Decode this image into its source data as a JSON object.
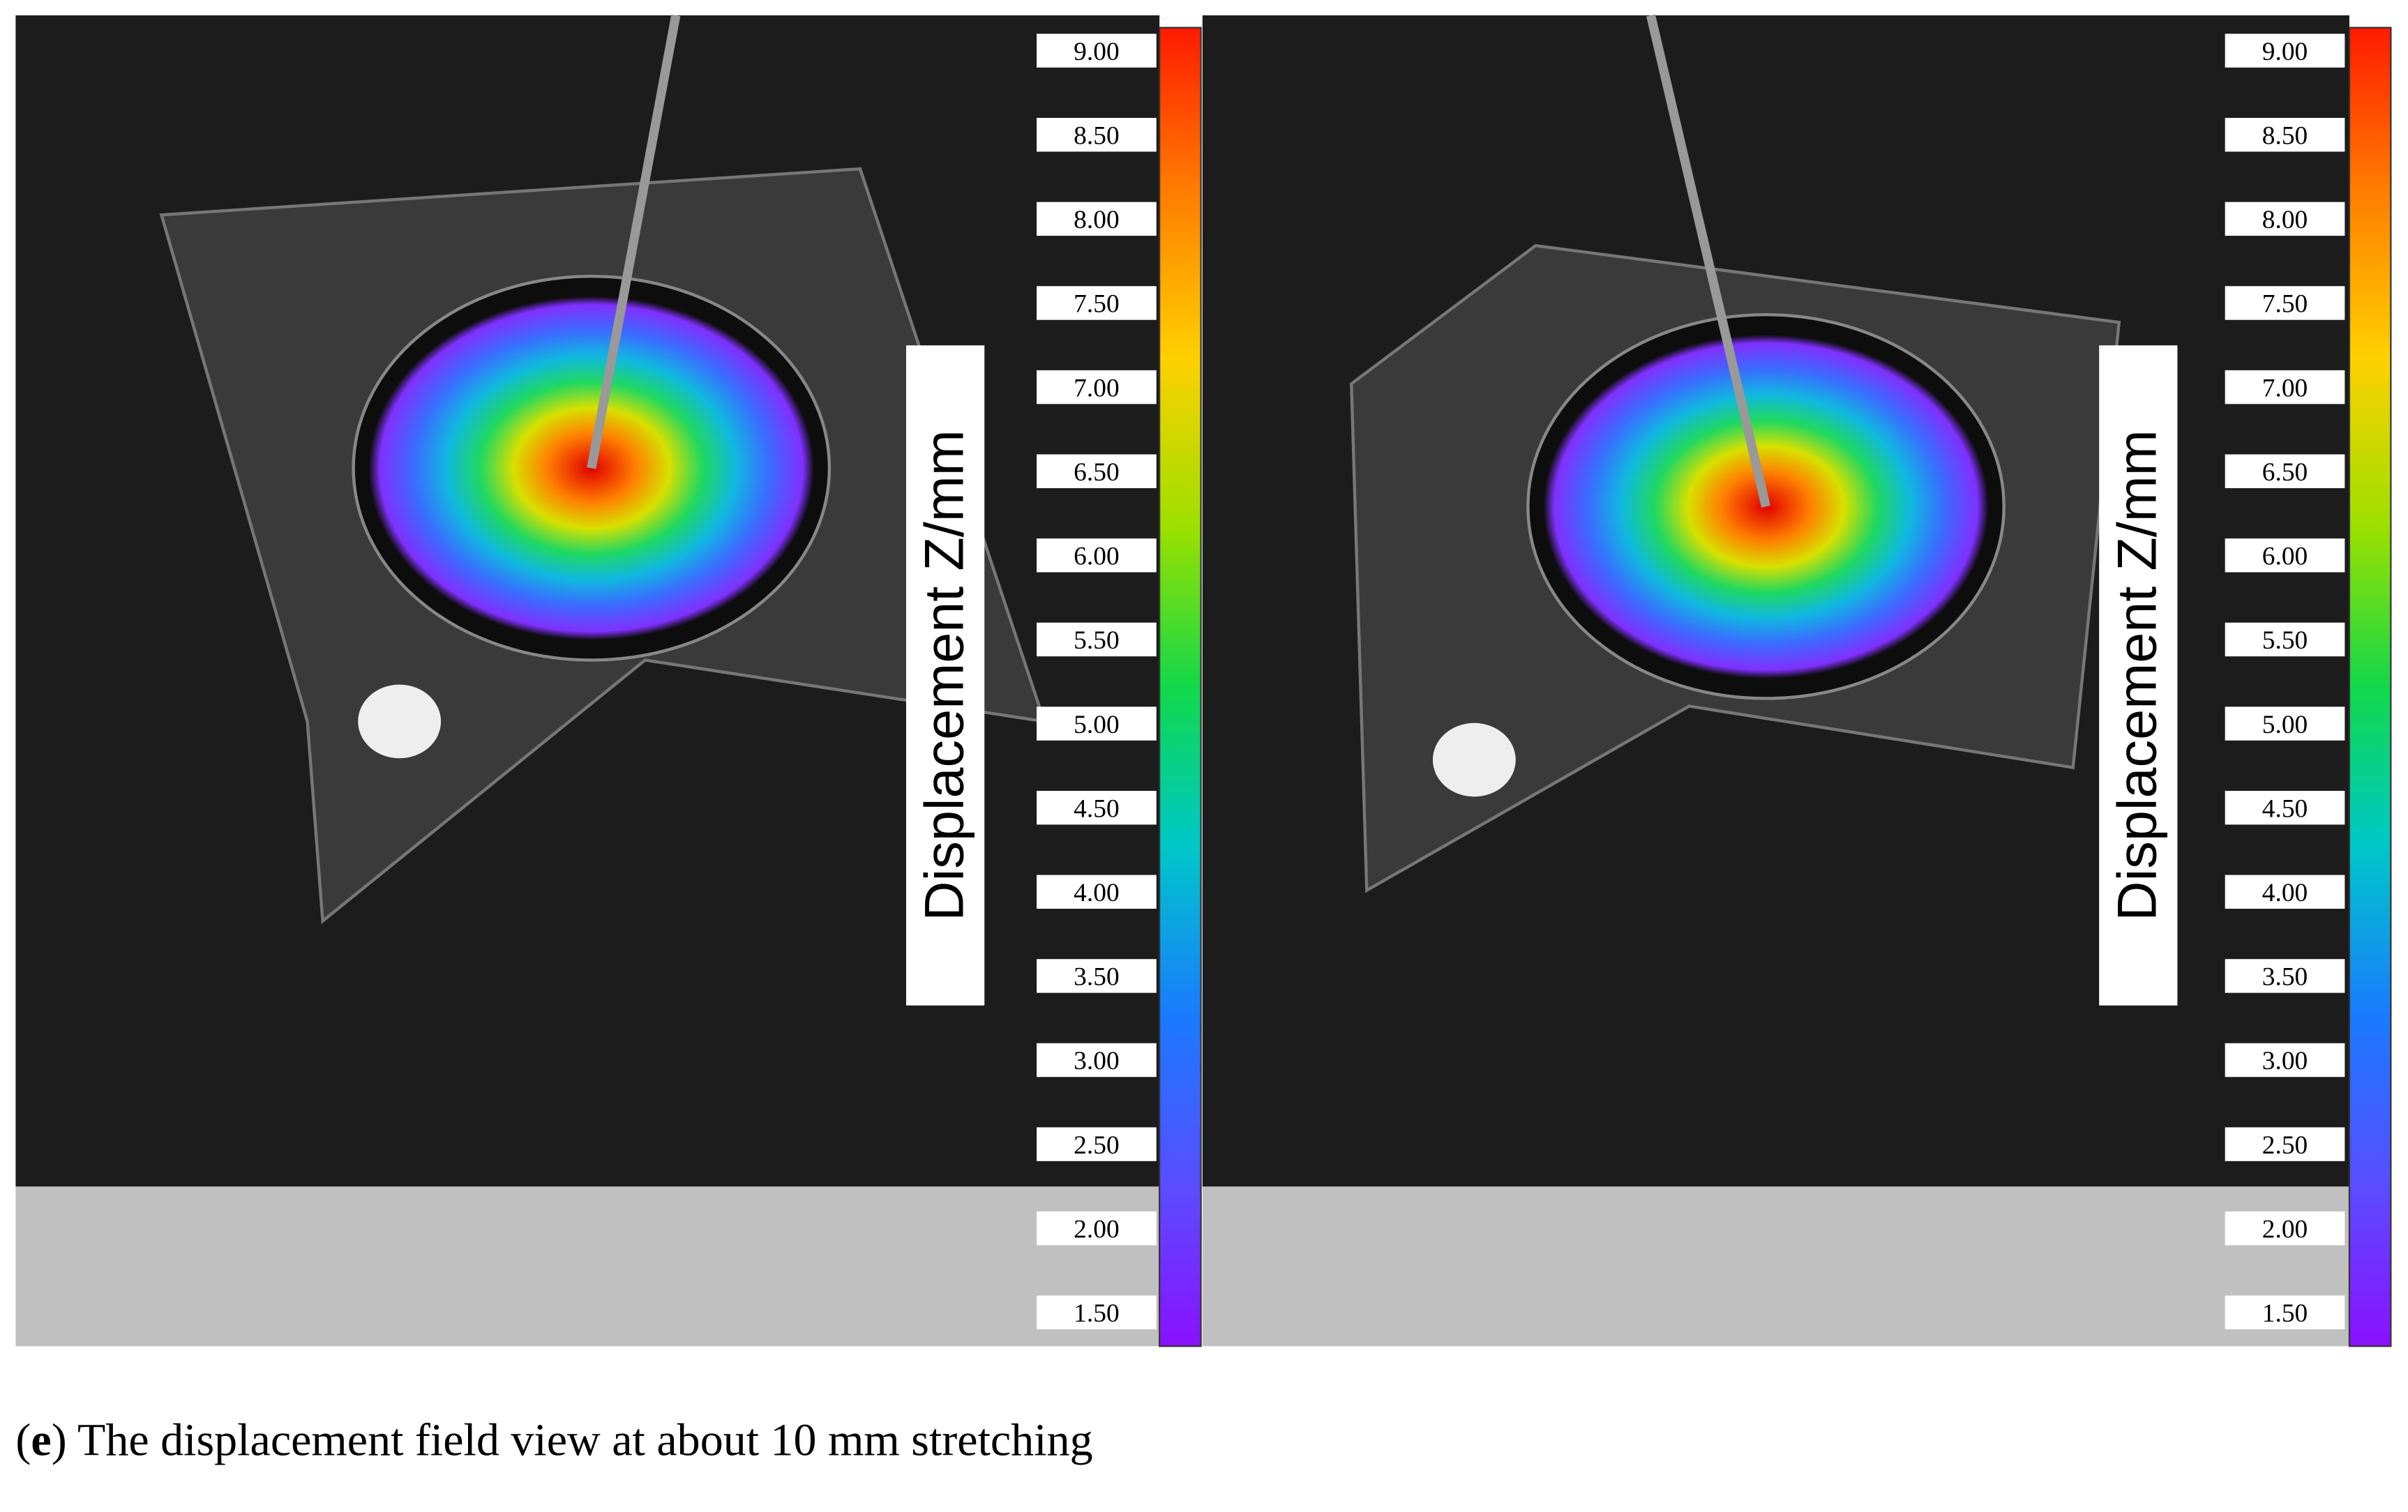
{
  "panels": [
    {
      "colorbar": {
        "ticks": [
          "9.00",
          "8.50",
          "8.00",
          "7.50",
          "7.00",
          "6.50",
          "6.00",
          "5.50",
          "5.00",
          "4.50",
          "4.00",
          "3.50",
          "3.00",
          "2.50",
          "2.00",
          "1.50"
        ],
        "label": "Displacement Z/mm"
      }
    },
    {
      "colorbar": {
        "ticks": [
          "9.00",
          "8.50",
          "8.00",
          "7.50",
          "7.00",
          "6.50",
          "6.00",
          "5.50",
          "5.00",
          "4.50",
          "4.00",
          "3.50",
          "3.00",
          "2.50",
          "2.00",
          "1.50"
        ],
        "label": "Displacement Z/mm"
      }
    }
  ],
  "caption": {
    "parts": [
      "(",
      "e",
      ") The displacement field view at about 10 mm stretching"
    ]
  }
}
